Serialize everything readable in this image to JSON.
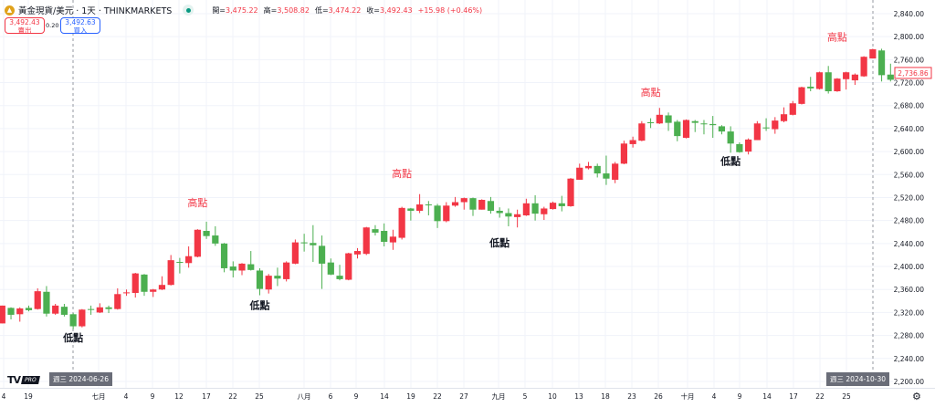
{
  "header": {
    "symbol_icon": "gold-coin-icon",
    "title": "黃金現貨/美元 · 1天 · THINKMARKETS",
    "market_status_icon": "market-open-dot-icon",
    "open_label": "開=",
    "open_value": "3,475.22",
    "high_label": "高=",
    "high_value": "3,508.82",
    "low_label": "低=",
    "low_value": "3,474.22",
    "close_label": "收=",
    "close_value": "3,492.43",
    "change": "+15.98 (+0.46%)"
  },
  "trade": {
    "sell_price": "3,492.43",
    "sell_label": "賣出",
    "spread": "0.20",
    "buy_price": "3,492.63",
    "buy_label": "買入"
  },
  "crosshair": {
    "left_date": "週三 2024-06-26",
    "right_date": "週三 2024-10-30"
  },
  "branding": {
    "logo": "TV",
    "badge": "PRO"
  },
  "settings_icon": "gear-icon",
  "colors": {
    "up": "#f23645",
    "down": "#4caf50",
    "high_label": "#f23645",
    "low_label": "#131722"
  },
  "chart_data": {
    "type": "candlestick",
    "title": "",
    "y_axis": {
      "min": 2200,
      "max": 2840,
      "step": 40,
      "side": "right",
      "ticks": [
        "2,200.00",
        "2,240.00",
        "2,280.00",
        "2,320.00",
        "2,360.00",
        "2,400.00",
        "2,440.00",
        "2,480.00",
        "2,520.00",
        "2,560.00",
        "2,600.00",
        "2,640.00",
        "2,680.00",
        "2,720.00",
        "2,760.00",
        "2,800.00",
        "2,840.00"
      ]
    },
    "x_axis": {
      "ticks": [
        "4",
        "19",
        "七月",
        "4",
        "9",
        "12",
        "17",
        "22",
        "25",
        "八月",
        "6",
        "9",
        "14",
        "19",
        "22",
        "27",
        "九月",
        "5",
        "10",
        "13",
        "18",
        "23",
        "26",
        "十月",
        "4",
        "9",
        "14",
        "17",
        "22",
        "25"
      ]
    },
    "grid": true,
    "last_price": "2,736.86",
    "ohlc_fields": [
      "open",
      "high",
      "low",
      "close"
    ],
    "candles": [
      [
        2301,
        2332,
        2301,
        2332
      ],
      [
        2328,
        2329,
        2308,
        2316
      ],
      [
        2317,
        2329,
        2304,
        2327
      ],
      [
        2328,
        2332,
        2322,
        2324
      ],
      [
        2326,
        2362,
        2325,
        2357
      ],
      [
        2356,
        2366,
        2313,
        2318
      ],
      [
        2318,
        2335,
        2316,
        2332
      ],
      [
        2330,
        2335,
        2313,
        2316
      ],
      [
        2317,
        2319,
        2291,
        2296
      ],
      [
        2296,
        2326,
        2294,
        2325
      ],
      [
        2326,
        2332,
        2316,
        2325
      ],
      [
        2320,
        2336,
        2319,
        2329
      ],
      [
        2329,
        2332,
        2319,
        2326
      ],
      [
        2326,
        2362,
        2325,
        2352
      ],
      [
        2354,
        2360,
        2349,
        2355
      ],
      [
        2354,
        2389,
        2346,
        2388
      ],
      [
        2386,
        2387,
        2349,
        2356
      ],
      [
        2356,
        2361,
        2347,
        2360
      ],
      [
        2360,
        2383,
        2359,
        2368
      ],
      [
        2368,
        2420,
        2367,
        2411
      ],
      [
        2408,
        2415,
        2388,
        2407
      ],
      [
        2406,
        2435,
        2398,
        2418
      ],
      [
        2417,
        2465,
        2416,
        2464
      ],
      [
        2462,
        2478,
        2448,
        2453
      ],
      [
        2454,
        2470,
        2436,
        2440
      ],
      [
        2440,
        2441,
        2390,
        2397
      ],
      [
        2400,
        2409,
        2381,
        2393
      ],
      [
        2393,
        2406,
        2385,
        2405
      ],
      [
        2404,
        2427,
        2393,
        2394
      ],
      [
        2393,
        2397,
        2350,
        2361
      ],
      [
        2360,
        2387,
        2353,
        2384
      ],
      [
        2384,
        2398,
        2366,
        2379
      ],
      [
        2378,
        2409,
        2374,
        2407
      ],
      [
        2405,
        2447,
        2404,
        2442
      ],
      [
        2442,
        2457,
        2426,
        2441
      ],
      [
        2441,
        2472,
        2408,
        2437
      ],
      [
        2436,
        2454,
        2361,
        2405
      ],
      [
        2407,
        2414,
        2385,
        2386
      ],
      [
        2384,
        2403,
        2376,
        2378
      ],
      [
        2377,
        2424,
        2376,
        2423
      ],
      [
        2421,
        2432,
        2414,
        2427
      ],
      [
        2422,
        2469,
        2420,
        2468
      ],
      [
        2465,
        2472,
        2454,
        2459
      ],
      [
        2462,
        2475,
        2435,
        2443
      ],
      [
        2442,
        2464,
        2429,
        2452
      ],
      [
        2450,
        2504,
        2447,
        2502
      ],
      [
        2501,
        2502,
        2480,
        2497
      ],
      [
        2497,
        2526,
        2493,
        2508
      ],
      [
        2508,
        2514,
        2489,
        2507
      ],
      [
        2506,
        2509,
        2467,
        2479
      ],
      [
        2479,
        2512,
        2477,
        2506
      ],
      [
        2506,
        2521,
        2504,
        2512
      ],
      [
        2512,
        2520,
        2499,
        2519
      ],
      [
        2519,
        2520,
        2488,
        2499
      ],
      [
        2499,
        2517,
        2499,
        2516
      ],
      [
        2514,
        2521,
        2492,
        2497
      ],
      [
        2497,
        2503,
        2485,
        2493
      ],
      [
        2493,
        2501,
        2470,
        2487
      ],
      [
        2486,
        2499,
        2468,
        2491
      ],
      [
        2489,
        2518,
        2488,
        2510
      ],
      [
        2510,
        2524,
        2480,
        2492
      ],
      [
        2491,
        2504,
        2481,
        2501
      ],
      [
        2500,
        2513,
        2499,
        2511
      ],
      [
        2510,
        2523,
        2496,
        2505
      ],
      [
        2505,
        2554,
        2504,
        2553
      ],
      [
        2551,
        2579,
        2551,
        2572
      ],
      [
        2571,
        2582,
        2569,
        2575
      ],
      [
        2575,
        2579,
        2555,
        2562
      ],
      [
        2562,
        2593,
        2542,
        2553
      ],
      [
        2551,
        2582,
        2545,
        2579
      ],
      [
        2579,
        2619,
        2578,
        2614
      ],
      [
        2613,
        2626,
        2607,
        2620
      ],
      [
        2619,
        2653,
        2618,
        2649
      ],
      [
        2651,
        2658,
        2641,
        2650
      ],
      [
        2649,
        2676,
        2648,
        2664
      ],
      [
        2663,
        2668,
        2636,
        2650
      ],
      [
        2652,
        2655,
        2618,
        2627
      ],
      [
        2624,
        2656,
        2623,
        2655
      ],
      [
        2653,
        2655,
        2634,
        2650
      ],
      [
        2649,
        2655,
        2630,
        2648
      ],
      [
        2648,
        2662,
        2624,
        2646
      ],
      [
        2644,
        2646,
        2630,
        2635
      ],
      [
        2635,
        2644,
        2598,
        2614
      ],
      [
        2613,
        2616,
        2598,
        2599
      ],
      [
        2600,
        2623,
        2595,
        2621
      ],
      [
        2620,
        2653,
        2620,
        2649
      ],
      [
        2642,
        2658,
        2636,
        2641
      ],
      [
        2639,
        2660,
        2631,
        2654
      ],
      [
        2653,
        2677,
        2651,
        2665
      ],
      [
        2664,
        2688,
        2663,
        2684
      ],
      [
        2683,
        2713,
        2682,
        2712
      ],
      [
        2713,
        2730,
        2705,
        2710
      ],
      [
        2709,
        2739,
        2708,
        2738
      ],
      [
        2738,
        2749,
        2701,
        2705
      ],
      [
        2705,
        2728,
        2704,
        2727
      ],
      [
        2726,
        2739,
        2708,
        2738
      ],
      [
        2724,
        2736,
        2716,
        2734
      ],
      [
        2731,
        2766,
        2730,
        2765
      ],
      [
        2762,
        2779,
        2762,
        2778
      ],
      [
        2776,
        2779,
        2722,
        2733
      ],
      [
        2734,
        2753,
        2722,
        2725
      ],
      [
        2735,
        2743,
        2733,
        2736.86
      ]
    ],
    "annotations": [
      {
        "text": "低點",
        "kind": "low",
        "candle": 8,
        "price": 2270
      },
      {
        "text": "高點",
        "kind": "high",
        "candle": 22,
        "price": 2505
      },
      {
        "text": "低點",
        "kind": "low",
        "candle": 29,
        "price": 2326
      },
      {
        "text": "高點",
        "kind": "high",
        "candle": 45,
        "price": 2556
      },
      {
        "text": "低點",
        "kind": "low",
        "candle": 56,
        "price": 2435
      },
      {
        "text": "高點",
        "kind": "high",
        "candle": 73,
        "price": 2697
      },
      {
        "text": "低點",
        "kind": "low",
        "candle": 82,
        "price": 2577
      },
      {
        "text": "高點",
        "kind": "high",
        "candle": 94,
        "price": 2793
      }
    ]
  }
}
